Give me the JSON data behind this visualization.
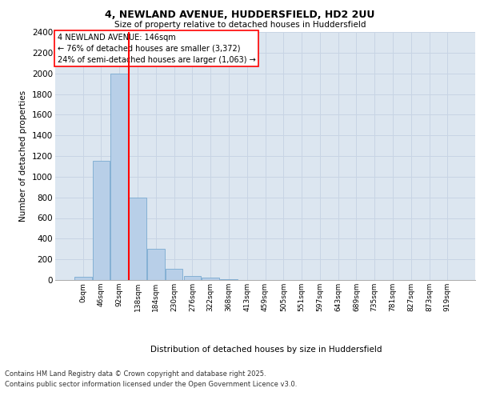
{
  "title_line1": "4, NEWLAND AVENUE, HUDDERSFIELD, HD2 2UU",
  "title_line2": "Size of property relative to detached houses in Huddersfield",
  "xlabel": "Distribution of detached houses by size in Huddersfield",
  "ylabel": "Number of detached properties",
  "categories": [
    "0sqm",
    "46sqm",
    "92sqm",
    "138sqm",
    "184sqm",
    "230sqm",
    "276sqm",
    "322sqm",
    "368sqm",
    "413sqm",
    "459sqm",
    "505sqm",
    "551sqm",
    "597sqm",
    "643sqm",
    "689sqm",
    "735sqm",
    "781sqm",
    "827sqm",
    "873sqm",
    "919sqm"
  ],
  "bar_values": [
    30,
    1150,
    2000,
    800,
    305,
    110,
    40,
    25,
    10,
    0,
    0,
    0,
    0,
    0,
    0,
    0,
    0,
    0,
    0,
    0,
    0
  ],
  "bar_color": "#b8cfe8",
  "bar_edge_color": "#7aaad0",
  "grid_color": "#c8d4e4",
  "background_color": "#dce6f0",
  "ylim": [
    0,
    2400
  ],
  "yticks": [
    0,
    200,
    400,
    600,
    800,
    1000,
    1200,
    1400,
    1600,
    1800,
    2000,
    2200,
    2400
  ],
  "red_line_x": 3,
  "annotation_title": "4 NEWLAND AVENUE: 146sqm",
  "annotation_line1": "← 76% of detached houses are smaller (3,372)",
  "annotation_line2": "24% of semi-detached houses are larger (1,063) →",
  "footer_line1": "Contains HM Land Registry data © Crown copyright and database right 2025.",
  "footer_line2": "Contains public sector information licensed under the Open Government Licence v3.0."
}
